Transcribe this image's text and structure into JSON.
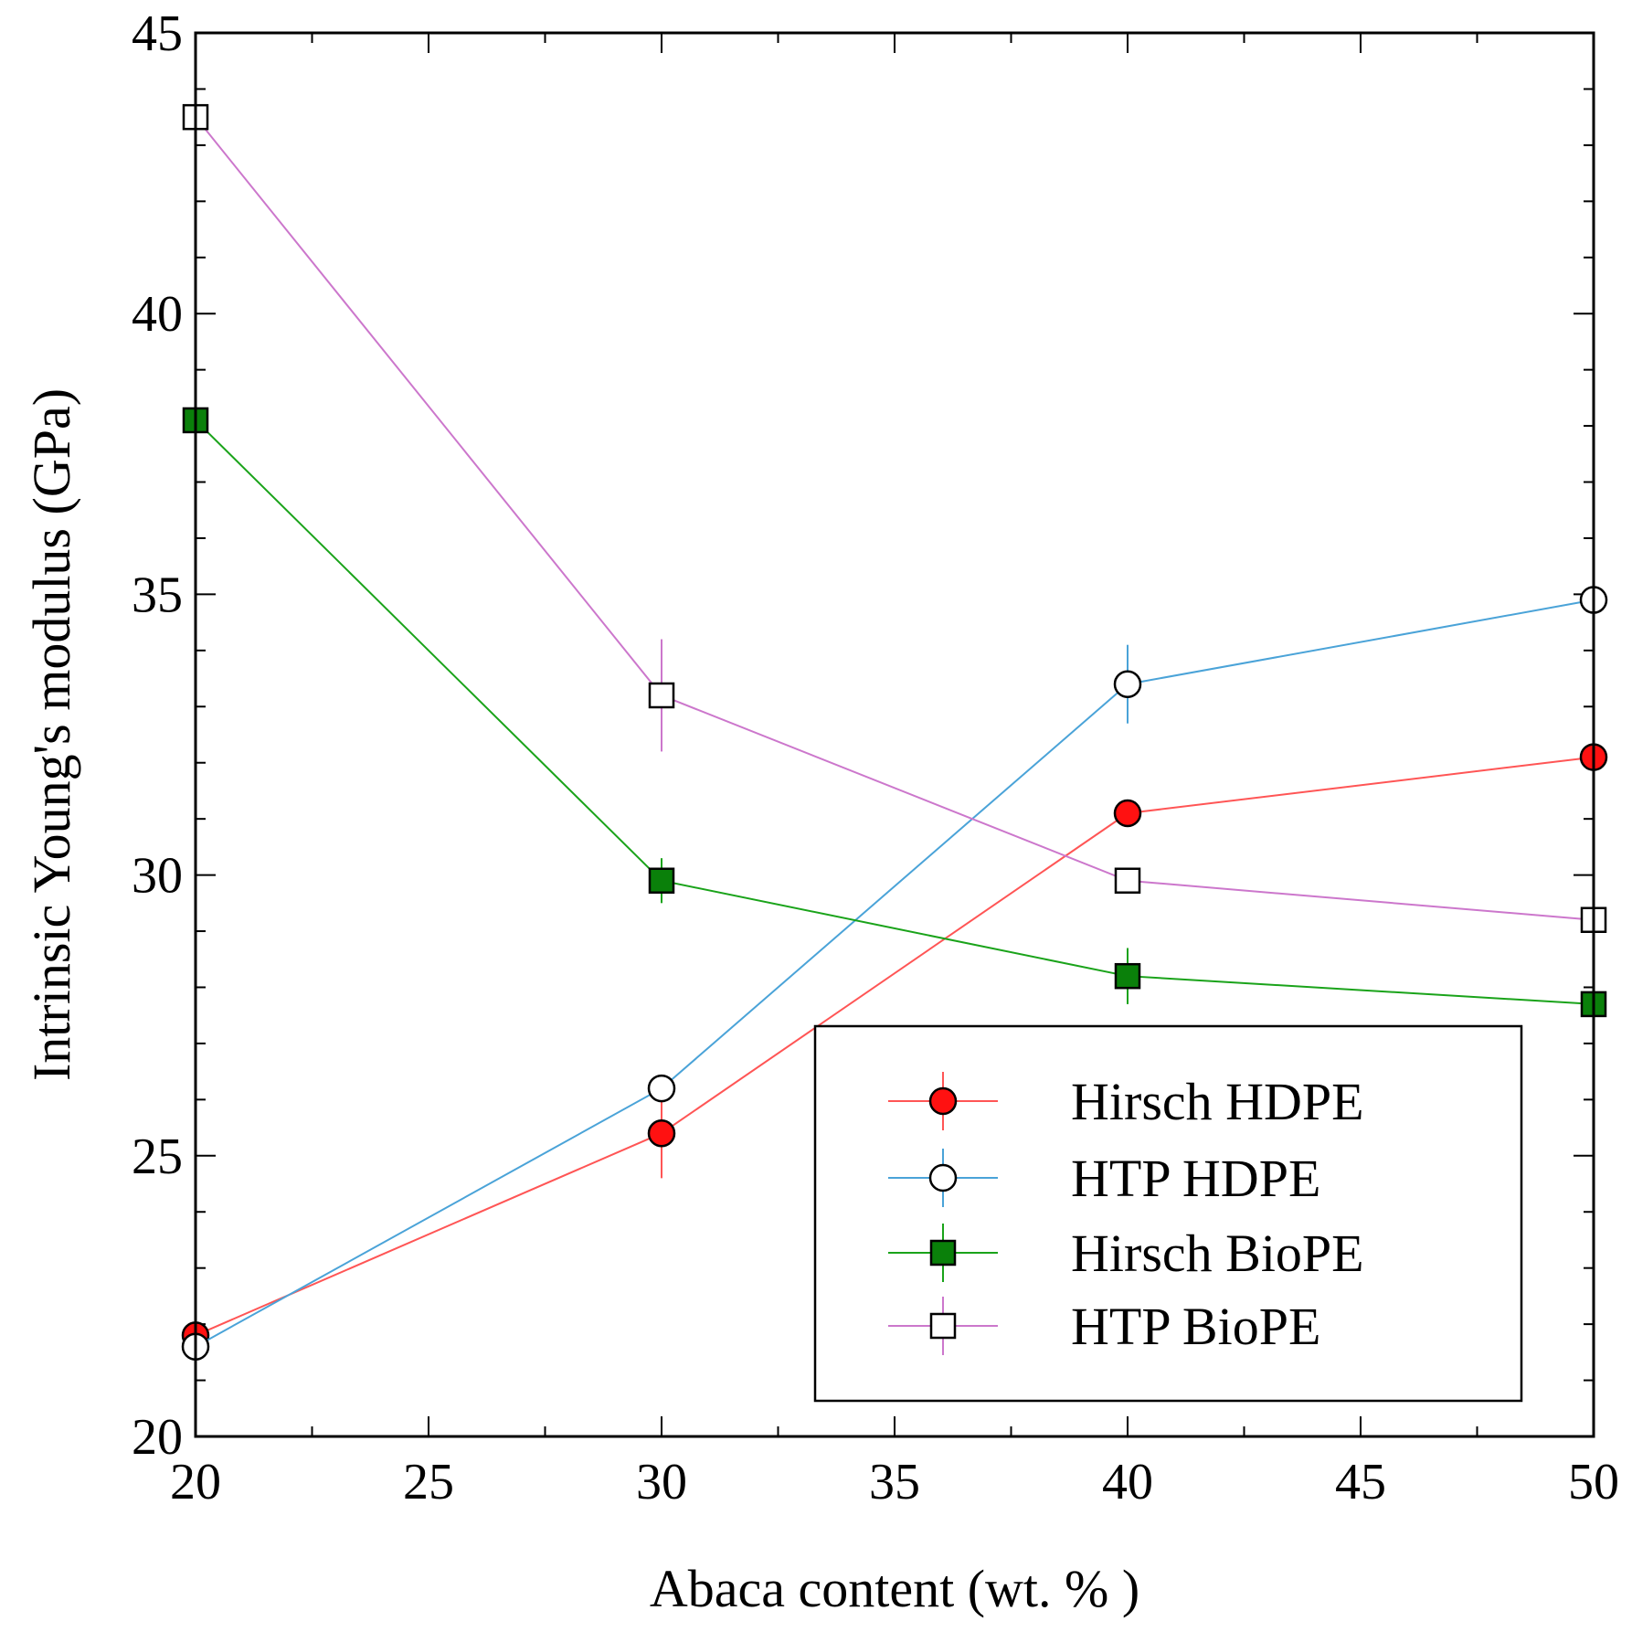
{
  "chart_data": {
    "type": "line",
    "title": "",
    "xlabel": "Abaca content (wt. % )",
    "ylabel": "Intrinsic Young's modulus (GPa)",
    "xlim": [
      20,
      50
    ],
    "ylim": [
      20,
      45
    ],
    "x_major_ticks": [
      20,
      25,
      30,
      35,
      40,
      45,
      50
    ],
    "x_minor_ticks": [
      22.5,
      27.5,
      32.5,
      37.5,
      42.5,
      47.5
    ],
    "y_major_ticks": [
      20,
      25,
      30,
      35,
      40,
      45
    ],
    "y_minor_ticks": [
      21,
      22,
      23,
      24,
      26,
      27,
      28,
      29,
      31,
      32,
      33,
      34,
      36,
      37,
      38,
      39,
      41,
      42,
      43,
      44
    ],
    "x_tick_labels": [
      "20",
      "25",
      "30",
      "35",
      "40",
      "45",
      "50"
    ],
    "y_tick_labels": [
      "20",
      "25",
      "30",
      "35",
      "40",
      "45"
    ],
    "grid": false,
    "legend_position": "bottom-right",
    "series": [
      {
        "name": "Hirsch HDPE",
        "color": "#ff5555",
        "marker": "circle",
        "marker_fill": "#ff1111",
        "x": [
          20,
          30,
          40,
          50
        ],
        "values": [
          21.8,
          25.4,
          31.1,
          32.1
        ],
        "errors": [
          0,
          0.8,
          0,
          0
        ]
      },
      {
        "name": "HTP HDPE",
        "color": "#4aa3d8",
        "marker": "circle",
        "marker_fill": "#ffffff",
        "x": [
          20,
          30,
          40,
          50
        ],
        "values": [
          21.6,
          26.2,
          33.4,
          34.9
        ],
        "errors": [
          0,
          0,
          0.7,
          0
        ]
      },
      {
        "name": "Hirsch BioPE",
        "color": "#1aa31a",
        "marker": "square",
        "marker_fill": "#0a800a",
        "x": [
          20,
          30,
          40,
          50
        ],
        "values": [
          38.1,
          29.9,
          28.2,
          27.7
        ],
        "errors": [
          0,
          0.4,
          0.5,
          0
        ]
      },
      {
        "name": "HTP BioPE",
        "color": "#cc77cc",
        "marker": "square",
        "marker_fill": "#ffffff",
        "x": [
          20,
          30,
          40,
          50
        ],
        "values": [
          43.5,
          33.2,
          29.9,
          29.2
        ],
        "errors": [
          0,
          1.0,
          0,
          0
        ]
      }
    ]
  }
}
